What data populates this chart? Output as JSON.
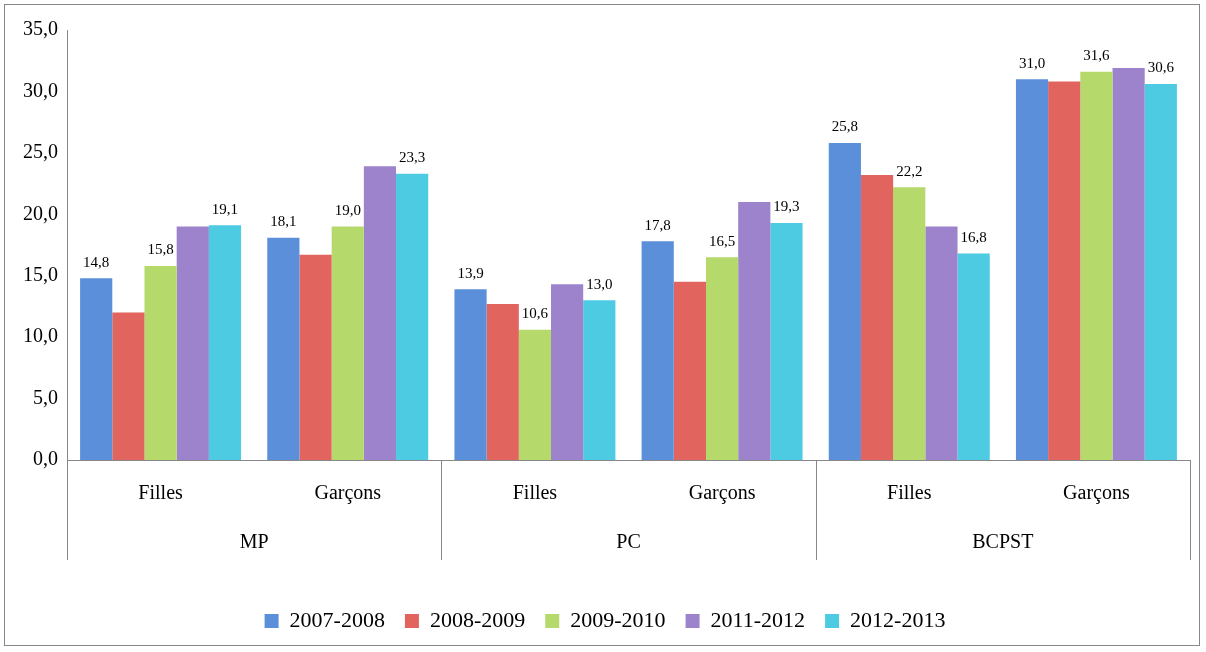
{
  "chart_data": {
    "type": "bar",
    "categories": [
      "Filles",
      "Garçons",
      "Filles",
      "Garçons",
      "Filles",
      "Garçons"
    ],
    "annotations": [
      "MP",
      "PC",
      "BCPST"
    ],
    "series": [
      {
        "name": "2007-2008",
        "color": "#5b8fd9",
        "values": [
          14.8,
          18.1,
          13.9,
          17.8,
          25.8,
          31.0
        ],
        "value_labels": [
          "14,8",
          "18,1",
          "13,9",
          "17,8",
          "25,8",
          "31,0"
        ]
      },
      {
        "name": "2008-2009",
        "color": "#e2645e",
        "values": [
          12.0,
          16.7,
          12.7,
          14.5,
          23.2,
          30.8
        ],
        "value_labels": [
          null,
          null,
          null,
          null,
          null,
          null
        ]
      },
      {
        "name": "2009-2010",
        "color": "#b5d96a",
        "values": [
          15.8,
          19.0,
          10.6,
          16.5,
          22.2,
          31.6
        ],
        "value_labels": [
          "15,8",
          "19,0",
          "10,6",
          "16,5",
          "22,2",
          "31,6"
        ]
      },
      {
        "name": "2011-2012",
        "color": "#9d83cc",
        "values": [
          19.0,
          23.9,
          14.3,
          21.0,
          19.0,
          31.9
        ],
        "value_labels": [
          null,
          null,
          null,
          null,
          null,
          null
        ]
      },
      {
        "name": "2012-2013",
        "color": "#4ccbe2",
        "values": [
          19.1,
          23.3,
          13.0,
          19.3,
          16.8,
          30.6
        ],
        "value_labels": [
          "19,1",
          "23,3",
          "13,0",
          "19,3",
          "16,8",
          "30,6"
        ]
      }
    ],
    "ylim": [
      0,
      35
    ],
    "yticks": [
      {
        "value": 0,
        "label": "0,0"
      },
      {
        "value": 5,
        "label": "5,0"
      },
      {
        "value": 10,
        "label": "10,0"
      },
      {
        "value": 15,
        "label": "15,0"
      },
      {
        "value": 20,
        "label": "20,0"
      },
      {
        "value": 25,
        "label": "25,0"
      },
      {
        "value": 30,
        "label": "30,0"
      },
      {
        "value": 35,
        "label": "35,0"
      }
    ],
    "grid": false,
    "legend": "bottom"
  }
}
